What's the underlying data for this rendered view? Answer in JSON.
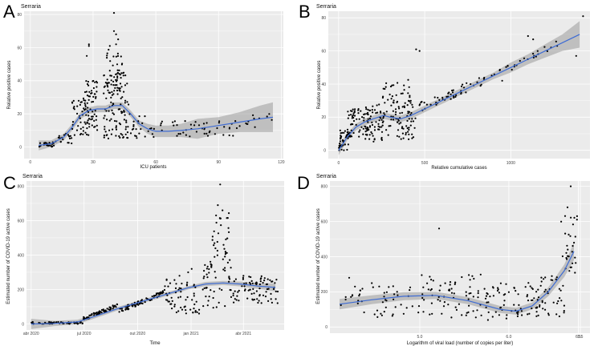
{
  "figure": {
    "background": "#ffffff",
    "panel_bg": "#ebebeb",
    "grid_color": "#ffffff",
    "point_color": "#000000",
    "line_color": "#3d6bd4",
    "band_color": "#9a9a9a"
  },
  "chart_data": [
    {
      "id": "A",
      "letter": "A",
      "type": "scatter",
      "title": "Serraria",
      "xlabel": "ICU patients",
      "ylabel": "Relative positive cases",
      "xlim": [
        -3,
        121
      ],
      "ylim": [
        -7,
        82
      ],
      "xticks": [
        0,
        30,
        60,
        90,
        120
      ],
      "xtick_labels": [
        "0",
        "30",
        "60",
        "90",
        "120"
      ],
      "yticks": [
        0,
        20,
        40,
        60,
        80
      ],
      "ytick_labels": [
        "0",
        "20",
        "40",
        "60",
        "80"
      ],
      "smooth": {
        "x": [
          4,
          10,
          16,
          20,
          24,
          28,
          32,
          36,
          40,
          44,
          48,
          52,
          56,
          60,
          66,
          72,
          80,
          90,
          100,
          110,
          116
        ],
        "y": [
          1,
          2,
          6,
          12,
          19,
          22,
          23,
          23,
          25,
          25,
          20,
          14,
          11,
          9.5,
          9.5,
          10,
          11,
          13,
          15,
          17,
          18
        ]
      },
      "band": {
        "upper": [
          4,
          4,
          8,
          14,
          21,
          24,
          25,
          25,
          27,
          27,
          22,
          16,
          14,
          13,
          13,
          14,
          17,
          18,
          21,
          25,
          27
        ],
        "lower": [
          -2,
          0,
          4,
          10,
          17,
          20,
          21,
          21,
          23,
          23,
          18,
          12,
          8,
          6,
          6,
          6,
          5,
          8,
          9,
          9,
          9
        ]
      },
      "clusters": [
        {
          "x": [
            4,
            12
          ],
          "y": [
            0,
            3
          ],
          "n": 25,
          "seed": 11
        },
        {
          "x": [
            12,
            20
          ],
          "y": [
            2,
            8
          ],
          "n": 20,
          "seed": 12
        },
        {
          "x": [
            20,
            28
          ],
          "y": [
            5,
            30
          ],
          "n": 45,
          "seed": 13
        },
        {
          "x": [
            26,
            32
          ],
          "y": [
            10,
            40
          ],
          "n": 60,
          "seed": 14
        },
        {
          "x": [
            35,
            47
          ],
          "y": [
            5,
            45
          ],
          "n": 110,
          "seed": 15
        },
        {
          "x": [
            36,
            44
          ],
          "y": [
            30,
            60
          ],
          "n": 35,
          "seed": 16
        },
        {
          "x": [
            47,
            60
          ],
          "y": [
            5,
            20
          ],
          "n": 25,
          "seed": 17
        },
        {
          "x": [
            60,
            100
          ],
          "y": [
            6,
            16
          ],
          "n": 45,
          "seed": 18
        },
        {
          "x": [
            100,
            116
          ],
          "y": [
            12,
            20
          ],
          "n": 12,
          "seed": 19
        }
      ],
      "points": [
        {
          "x": [
            28,
            28,
            27,
            40,
            40,
            41,
            42,
            41,
            38
          ],
          "y": [
            62,
            61,
            55,
            81,
            70,
            68,
            65,
            62,
            61
          ]
        }
      ]
    },
    {
      "id": "B",
      "letter": "B",
      "type": "scatter",
      "title": "Serraria",
      "xlabel": "Relative cumulative cases",
      "ylabel": "Relative positive cases",
      "xlim": [
        -60,
        1460
      ],
      "ylim": [
        -5,
        84
      ],
      "xticks": [
        0,
        500,
        1000
      ],
      "xtick_labels": [
        "0",
        "500",
        "1000"
      ],
      "yticks": [
        0,
        20,
        40,
        60,
        80
      ],
      "ytick_labels": [
        "0",
        "20",
        "40",
        "60",
        "80"
      ],
      "smooth": {
        "x": [
          0,
          50,
          100,
          150,
          200,
          260,
          300,
          360,
          420,
          500,
          600,
          700,
          800,
          900,
          1000,
          1100,
          1200,
          1300,
          1400
        ],
        "y": [
          0,
          8,
          14,
          17,
          19,
          21,
          20,
          19,
          21,
          25,
          30,
          35,
          40,
          45,
          50,
          55,
          60,
          65,
          70
        ]
      },
      "band": {
        "upper": [
          3,
          10,
          16,
          19,
          21,
          23,
          22,
          21,
          23,
          27,
          32,
          37,
          42,
          47,
          53,
          58,
          64,
          70,
          78
        ],
        "lower": [
          -3,
          6,
          12,
          15,
          17,
          19,
          18,
          17,
          19,
          23,
          28,
          33,
          38,
          43,
          47,
          52,
          56,
          60,
          62
        ]
      },
      "clusters": [
        {
          "x": [
            0,
            60
          ],
          "y": [
            0,
            12
          ],
          "n": 40,
          "seed": 21
        },
        {
          "x": [
            50,
            200
          ],
          "y": [
            8,
            25
          ],
          "n": 70,
          "seed": 22
        },
        {
          "x": [
            150,
            450
          ],
          "y": [
            5,
            30
          ],
          "n": 120,
          "seed": 23
        },
        {
          "x": [
            250,
            420
          ],
          "y": [
            25,
            43
          ],
          "n": 35,
          "seed": 24
        },
        {
          "x": [
            450,
            1000
          ],
          "y": [
            22,
            52
          ],
          "n": 55,
          "seed": 25,
          "trend": true
        },
        {
          "x": [
            1000,
            1300
          ],
          "y": [
            48,
            68
          ],
          "n": 18,
          "seed": 26,
          "trend": true
        }
      ],
      "points": [
        {
          "x": [
            450,
            470,
            1420,
            1380,
            1100,
            1130,
            950
          ],
          "y": [
            61,
            60,
            81,
            57,
            69,
            67,
            42
          ]
        }
      ]
    },
    {
      "id": "C",
      "letter": "C",
      "type": "scatter",
      "title": "Serraria",
      "xlabel": "Time",
      "ylabel": "Estimated number of COVID-19 active cases",
      "xlim": [
        -8,
        435
      ],
      "ylim": [
        -35,
        830
      ],
      "xticks": [
        0,
        91,
        183,
        275,
        365
      ],
      "xtick_labels": [
        "abr 2020",
        "jul 2020",
        "out 2020",
        "jan 2021",
        "abr 2021"
      ],
      "yticks": [
        0,
        200,
        400,
        600,
        800
      ],
      "ytick_labels": [
        "0",
        "200",
        "400",
        "600",
        "800"
      ],
      "smooth": {
        "x": [
          0,
          40,
          80,
          110,
          150,
          190,
          230,
          270,
          300,
          330,
          360,
          390,
          420
        ],
        "y": [
          0,
          3,
          12,
          45,
          90,
          130,
          170,
          210,
          232,
          238,
          232,
          220,
          212
        ]
      },
      "band": {
        "upper": [
          30,
          18,
          25,
          57,
          100,
          140,
          180,
          220,
          244,
          250,
          246,
          236,
          235
        ],
        "lower": [
          -30,
          -12,
          -1,
          33,
          80,
          120,
          160,
          200,
          220,
          226,
          218,
          204,
          189
        ]
      },
      "clusters": [
        {
          "x": [
            0,
            90
          ],
          "y": [
            0,
            12
          ],
          "n": 60,
          "seed": 31
        },
        {
          "x": [
            90,
            150
          ],
          "y": [
            20,
            120
          ],
          "n": 70,
          "seed": 32,
          "trend": true
        },
        {
          "x": [
            150,
            230
          ],
          "y": [
            60,
            200
          ],
          "n": 80,
          "seed": 33,
          "trend": true
        },
        {
          "x": [
            230,
            290
          ],
          "y": [
            60,
            260
          ],
          "n": 60,
          "seed": 34
        },
        {
          "x": [
            295,
            345
          ],
          "y": [
            80,
            380
          ],
          "n": 50,
          "seed": 35
        },
        {
          "x": [
            310,
            340
          ],
          "y": [
            350,
            650
          ],
          "n": 30,
          "seed": 36
        },
        {
          "x": [
            345,
            425
          ],
          "y": [
            120,
            280
          ],
          "n": 80,
          "seed": 37
        }
      ],
      "points": [
        {
          "x": [
            325,
            321,
            329,
            318,
            276,
            270,
            255
          ],
          "y": [
            810,
            690,
            660,
            630,
            320,
            300,
            280
          ]
        }
      ]
    },
    {
      "id": "D",
      "letter": "D",
      "type": "scatter",
      "title": "Serraria",
      "xlabel": "Logarithm of viral load (number of copies per liter)",
      "ylabel": "Estimated number of COVID-19 active cases",
      "xlim": [
        4.72,
        5.53
      ],
      "ylim": [
        -35,
        830
      ],
      "xticks": [
        5.0,
        5.5
      ],
      "xtick_labels": [
        "5.0",
        "5.5"
      ],
      "extra_ticks": [
        {
          "value": 6.0,
          "label": "6.0"
        },
        {
          "value": 6.5,
          "label": "6.5"
        }
      ],
      "yticks": [
        0,
        200,
        400,
        600,
        800
      ],
      "ytick_labels": [
        "0",
        "200",
        "400",
        "600",
        "800"
      ],
      "smooth": {
        "x": [
          4.75,
          4.85,
          4.95,
          5.05,
          5.15,
          5.25,
          5.3,
          5.35,
          5.4,
          5.45,
          5.48
        ],
        "y": [
          130,
          155,
          175,
          180,
          150,
          100,
          90,
          120,
          200,
          320,
          430
        ]
      },
      "band": {
        "upper": [
          160,
          180,
          198,
          200,
          170,
          120,
          110,
          140,
          225,
          355,
          480
        ],
        "lower": [
          100,
          130,
          152,
          160,
          130,
          80,
          70,
          100,
          175,
          285,
          380
        ]
      },
      "clusters": [
        {
          "x": [
            4.75,
            5.0
          ],
          "y": [
            50,
            250
          ],
          "n": 50,
          "seed": 41
        },
        {
          "x": [
            5.0,
            5.2
          ],
          "y": [
            50,
            300
          ],
          "n": 70,
          "seed": 42
        },
        {
          "x": [
            5.2,
            5.35
          ],
          "y": [
            40,
            260
          ],
          "n": 60,
          "seed": 43
        },
        {
          "x": [
            5.35,
            5.45
          ],
          "y": [
            60,
            300
          ],
          "n": 50,
          "seed": 44
        },
        {
          "x": [
            5.44,
            5.49
          ],
          "y": [
            300,
            650
          ],
          "n": 30,
          "seed": 45
        }
      ],
      "points": [
        {
          "x": [
            5.47,
            5.46,
            4.78,
            5.06
          ],
          "y": [
            800,
            680,
            280,
            560
          ]
        }
      ]
    }
  ]
}
